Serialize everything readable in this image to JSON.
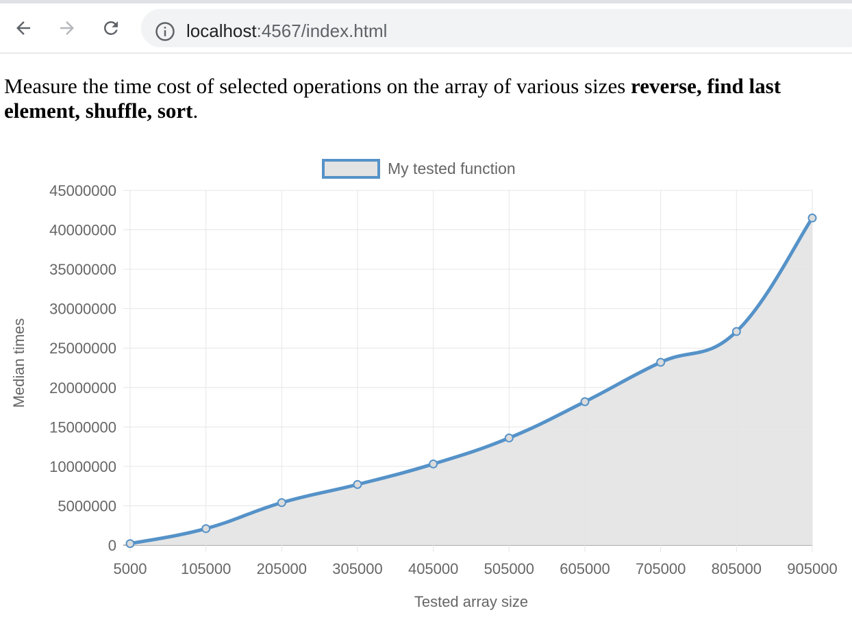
{
  "browser": {
    "url_host": "localhost",
    "url_rest": ":4567/index.html"
  },
  "intro": {
    "text": "Measure the time cost of selected operations on the array of various sizes ",
    "bold": "reverse, find last element, shuffle, sort",
    "end": "."
  },
  "chart_data": {
    "type": "line",
    "legend": "My tested function",
    "xlabel": "Tested array size",
    "ylabel": "Median times",
    "categories": [
      "5000",
      "105000",
      "205000",
      "305000",
      "405000",
      "505000",
      "605000",
      "705000",
      "805000",
      "905000"
    ],
    "series": [
      {
        "name": "My tested function",
        "values": [
          200000,
          2100000,
          5400000,
          7700000,
          10300000,
          13600000,
          18200000,
          23200000,
          27100000,
          41500000
        ]
      }
    ],
    "ylim": [
      0,
      45000000
    ],
    "yticks": [
      "0",
      "5000000",
      "10000000",
      "15000000",
      "20000000",
      "25000000",
      "30000000",
      "35000000",
      "40000000",
      "45000000"
    ],
    "grid": true,
    "fill": true,
    "legend_position": "top",
    "colors": {
      "line": "#5592c8",
      "fill": "#e3e3e3",
      "grid": "#e6e6e6",
      "text": "#666666"
    }
  }
}
